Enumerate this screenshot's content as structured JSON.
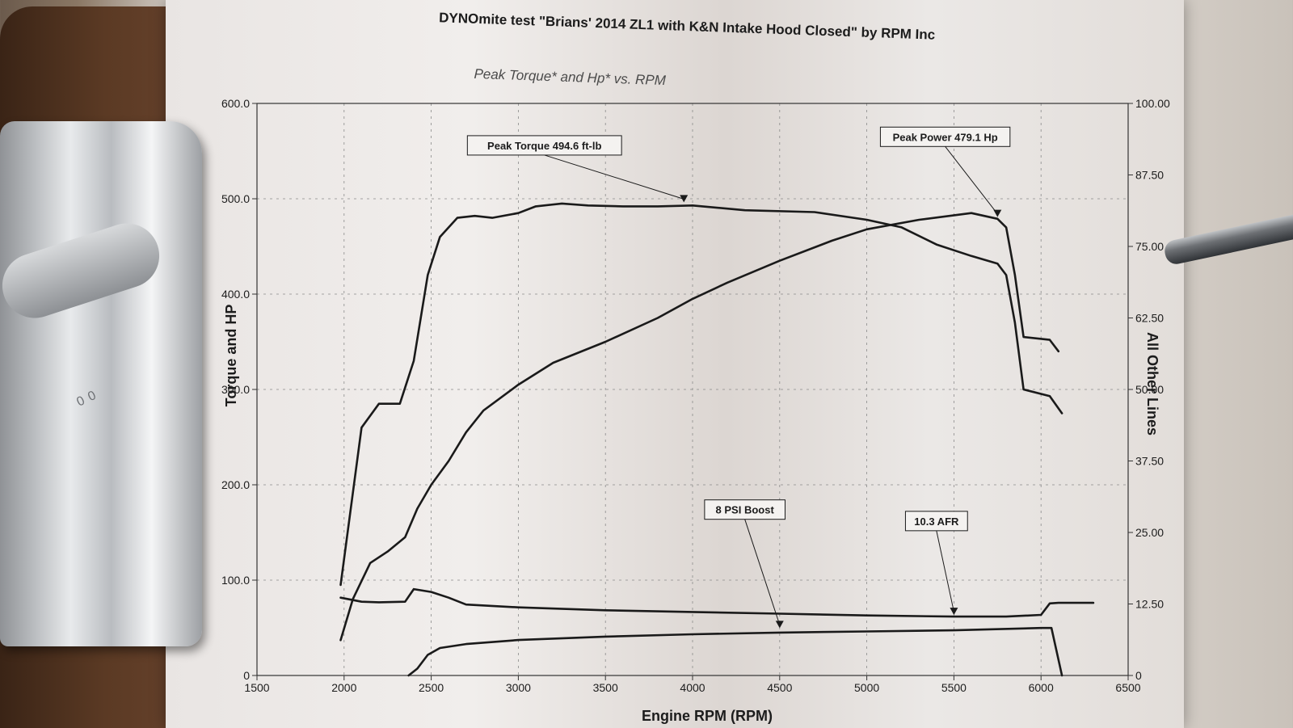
{
  "chart_data": {
    "type": "line",
    "title": "DYNOmite test \"Brians' 2014 ZL1 with K&N Intake Hood Closed\" by RPM Inc",
    "subtitle": "Peak Torque* and Hp* vs. RPM",
    "xlabel": "Engine RPM (RPM)",
    "ylabel": "Torque and HP",
    "y2label": "All Other Lines",
    "xlim": [
      1500,
      6500
    ],
    "ylim": [
      0,
      600
    ],
    "y2lim": [
      0,
      100
    ],
    "x_ticks": [
      "1500",
      "2000",
      "2500",
      "3000",
      "3500",
      "4000",
      "4500",
      "5000",
      "5500",
      "6000",
      "6500"
    ],
    "y_ticks": [
      "0",
      "100.0",
      "200.0",
      "300.0",
      "400.0",
      "500.0",
      "600.0"
    ],
    "y2_ticks": [
      "0",
      "12.50",
      "25.00",
      "37.50",
      "50.00",
      "62.50",
      "75.00",
      "87.50",
      "100.00"
    ],
    "grid": true,
    "series": [
      {
        "axis": "left",
        "x": [
          1980,
          2100,
          2200,
          2320,
          2400,
          2480,
          2550,
          2650,
          2750,
          2850,
          3000,
          3100,
          3250,
          3400,
          3600,
          3800,
          4000,
          4300,
          4700,
          5000,
          5200,
          5400,
          5600,
          5750,
          5800,
          5850,
          5900,
          6050,
          6120
        ],
        "y": [
          95,
          260,
          285,
          285,
          330,
          420,
          460,
          480,
          482,
          480,
          485,
          492,
          495,
          493,
          492,
          492,
          493,
          488,
          486,
          478,
          470,
          452,
          440,
          432,
          420,
          370,
          300,
          293,
          275
        ]
      },
      {
        "axis": "left",
        "x": [
          1980,
          2050,
          2150,
          2250,
          2350,
          2420,
          2500,
          2600,
          2700,
          2800,
          3000,
          3200,
          3500,
          3800,
          4000,
          4200,
          4500,
          4800,
          5000,
          5300,
          5600,
          5750,
          5800,
          5850,
          5900,
          6050,
          6100
        ],
        "y": [
          37,
          80,
          118,
          130,
          145,
          175,
          200,
          225,
          255,
          278,
          305,
          328,
          350,
          375,
          395,
          412,
          435,
          456,
          468,
          478,
          485,
          479,
          470,
          420,
          355,
          352,
          340
        ]
      },
      {
        "axis": "right",
        "x": [
          1980,
          2100,
          2200,
          2350,
          2400,
          2500,
          2600,
          2700,
          3000,
          3500,
          4000,
          4500,
          5000,
          5500,
          5800,
          6000,
          6050,
          6100,
          6300
        ],
        "y": [
          13.6,
          12.9,
          12.8,
          12.9,
          15.1,
          14.6,
          13.6,
          12.4,
          11.9,
          11.4,
          11.1,
          10.8,
          10.5,
          10.3,
          10.3,
          10.6,
          12.6,
          12.7,
          12.7
        ]
      },
      {
        "axis": "right",
        "x": [
          2370,
          2420,
          2480,
          2550,
          2700,
          3000,
          3500,
          4000,
          4500,
          5000,
          5500,
          6000,
          6060,
          6120
        ],
        "y": [
          0,
          1.2,
          3.6,
          4.8,
          5.5,
          6.2,
          6.8,
          7.2,
          7.5,
          7.7,
          7.9,
          8.3,
          8.3,
          0
        ]
      }
    ],
    "annotations": [
      {
        "text": "Peak Torque 494.6 ft-lb",
        "point": [
          3950,
          494.6
        ],
        "axis": "left",
        "box_at": [
          3150,
          556
        ]
      },
      {
        "text": "Peak Power 479.1 Hp",
        "point": [
          5750,
          479.1
        ],
        "axis": "left",
        "box_at": [
          5450,
          565
        ]
      },
      {
        "text": "8 PSI Boost",
        "point": [
          4500,
          8
        ],
        "axis": "right",
        "box_at": [
          4300,
          29
        ]
      },
      {
        "text": "10.3 AFR",
        "point": [
          5500,
          10.3
        ],
        "axis": "right",
        "box_at": [
          5400,
          27
        ]
      }
    ]
  }
}
